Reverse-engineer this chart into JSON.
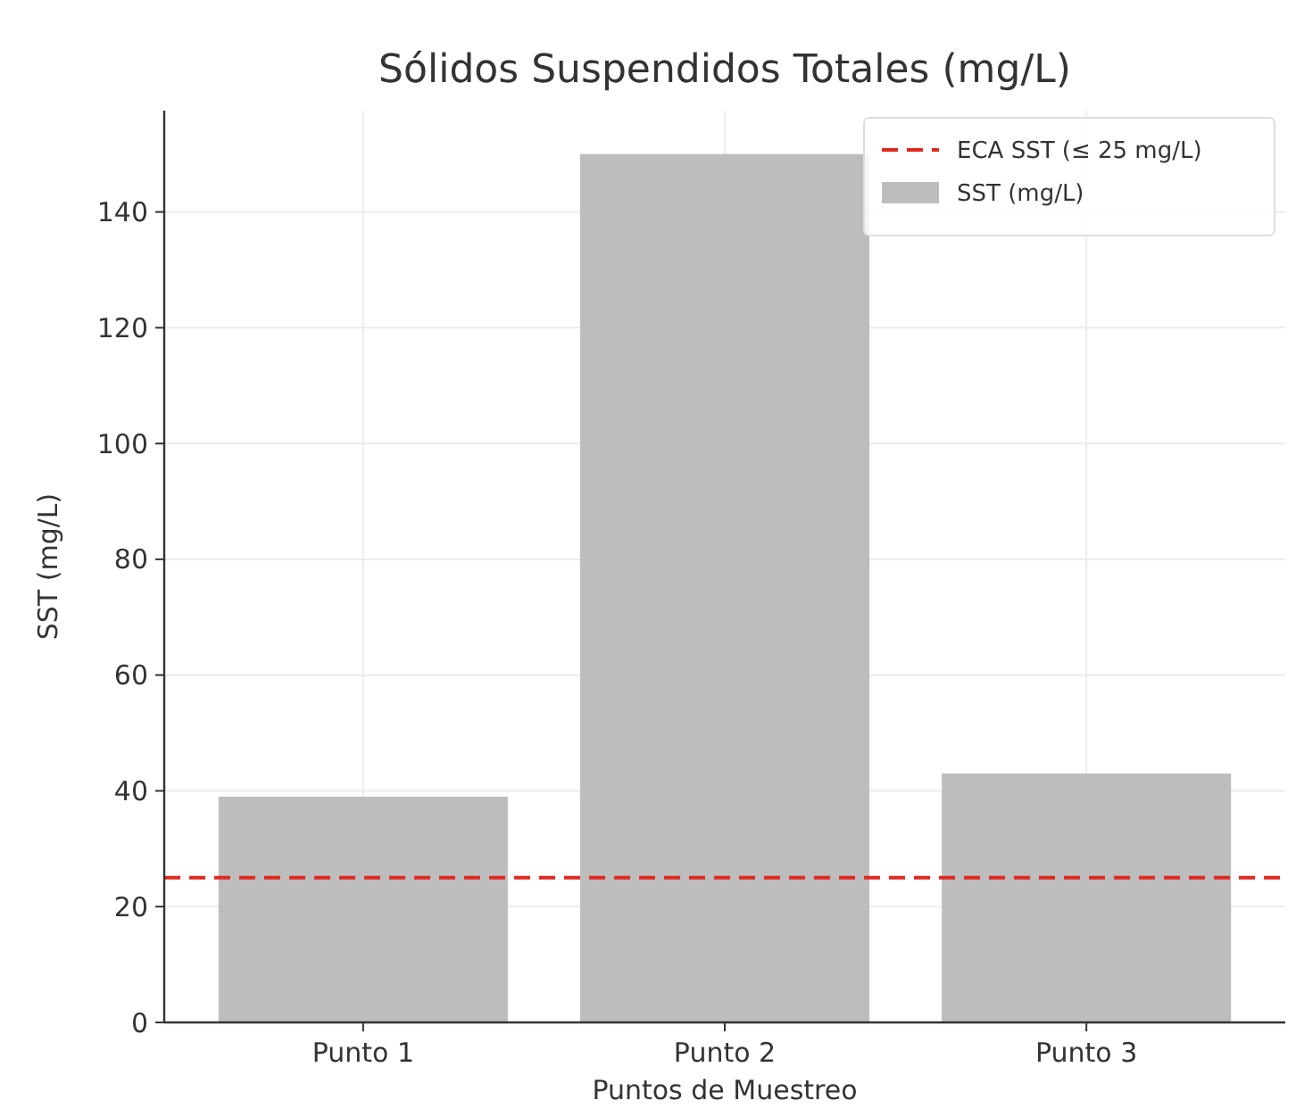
{
  "chart_data": {
    "type": "bar",
    "title": "Sólidos Suspendidos Totales (mg/L)",
    "xlabel": "Puntos de Muestreo",
    "ylabel": "SST (mg/L)",
    "categories": [
      "Punto 1",
      "Punto 2",
      "Punto 3"
    ],
    "series": [
      {
        "name": "SST (mg/L)",
        "color": "#bdbdbd",
        "values": [
          39,
          150,
          43
        ]
      }
    ],
    "ylim": [
      0,
      157.5
    ],
    "yticks": [
      0,
      20,
      40,
      60,
      80,
      100,
      120,
      140
    ],
    "grid": true,
    "legend": "top right",
    "ref_lines": [
      {
        "axis": "y",
        "value": 25,
        "label": "ECA SST (≤ 25 mg/L)",
        "color": "#e0281e",
        "line_style": "dashed"
      }
    ]
  }
}
